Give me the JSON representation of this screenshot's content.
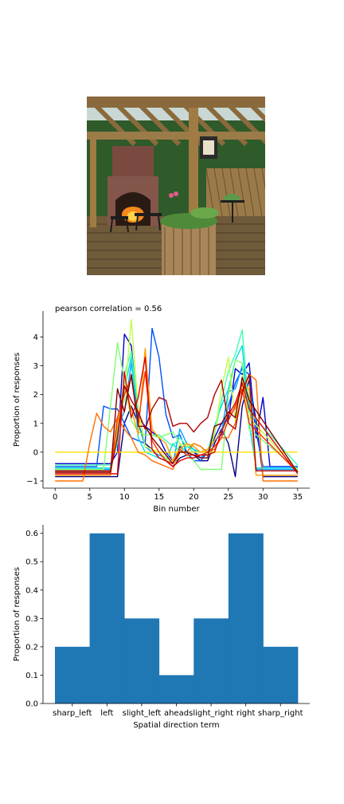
{
  "photo": {
    "colors": {
      "sky": "#c9d8d4",
      "foliage": "#2f5a2a",
      "wood": "#8a6a3c",
      "brick": "#7a4a40",
      "fire": "#f58a1c",
      "deck": "#6f5a3a"
    }
  },
  "chart_data": [
    {
      "type": "line",
      "title": "pearson correlation = 0.56",
      "xlabel": "Bin number",
      "ylabel": "Proportion of responses",
      "xlim": [
        -1.75,
        36.75
      ],
      "ylim": [
        -1.25,
        4.9
      ],
      "xticks": [
        0,
        5,
        10,
        15,
        20,
        25,
        30,
        35
      ],
      "yticks": [
        -1,
        0,
        1,
        2,
        3,
        4
      ],
      "grid": false,
      "colormap": "jet",
      "series": [
        {
          "color": "#000080",
          "x": [
            0,
            6,
            7,
            8,
            9,
            10,
            11,
            12,
            13,
            14,
            15,
            16,
            17,
            18,
            19,
            20,
            21,
            22,
            23,
            24,
            25,
            26,
            27,
            28,
            29,
            30,
            35
          ],
          "y": [
            -0.85,
            -0.85,
            -0.85,
            -0.85,
            -0.85,
            1.0,
            1.6,
            1.0,
            0.3,
            0.1,
            -0.2,
            -0.3,
            -0.5,
            -0.2,
            -0.1,
            -0.1,
            -0.3,
            -0.3,
            0.3,
            0.8,
            0.3,
            -0.85,
            1.6,
            2.5,
            1.1,
            -0.85,
            -0.85
          ]
        },
        {
          "color": "#0000cd",
          "x": [
            0,
            7,
            8,
            9,
            10,
            11,
            12,
            13,
            14,
            15,
            16,
            17,
            18,
            19,
            20,
            21,
            22,
            23,
            24,
            25,
            26,
            27,
            28,
            29,
            30,
            31,
            35
          ],
          "y": [
            -0.4,
            -0.4,
            -0.4,
            0.0,
            4.1,
            3.7,
            1.2,
            0.9,
            0.7,
            0.5,
            0.0,
            -0.3,
            0.2,
            0.0,
            0.0,
            -0.2,
            0.0,
            0.5,
            1.0,
            1.1,
            2.9,
            2.7,
            3.1,
            0.5,
            1.9,
            -0.5,
            -0.5
          ]
        },
        {
          "color": "#0050ff",
          "x": [
            0,
            6,
            7,
            8,
            9,
            10,
            11,
            12,
            13,
            14,
            15,
            16,
            17,
            18,
            19,
            20,
            21,
            22,
            23,
            24,
            25,
            26,
            27,
            28,
            29,
            30,
            35
          ],
          "y": [
            -0.5,
            -0.5,
            1.6,
            1.5,
            1.5,
            1.0,
            0.5,
            0.4,
            0.3,
            4.3,
            3.3,
            1.3,
            0.5,
            0.6,
            0.0,
            -0.3,
            -0.3,
            0.0,
            0.4,
            0.6,
            1.6,
            2.4,
            2.9,
            2.7,
            0.7,
            -0.5,
            -0.5
          ]
        },
        {
          "color": "#00a0ff",
          "x": [
            0,
            8,
            9,
            10,
            11,
            12,
            13,
            14,
            15,
            16,
            17,
            18,
            19,
            20,
            21,
            22,
            23,
            24,
            25,
            26,
            27,
            28,
            29,
            35
          ],
          "y": [
            -0.6,
            -0.6,
            0.9,
            1.4,
            3.1,
            1.0,
            0.2,
            0.0,
            -0.1,
            -0.2,
            -0.4,
            0.8,
            0.3,
            0.1,
            -0.2,
            0.0,
            0.4,
            0.7,
            2.1,
            2.2,
            3.0,
            1.8,
            -0.6,
            -0.6
          ]
        },
        {
          "color": "#00e0e0",
          "x": [
            0,
            8,
            9,
            10,
            11,
            12,
            13,
            14,
            15,
            16,
            17,
            18,
            19,
            20,
            21,
            22,
            23,
            24,
            25,
            26,
            27,
            28,
            29,
            35
          ],
          "y": [
            -0.55,
            -0.55,
            0.7,
            2.2,
            3.3,
            0.5,
            0.0,
            -0.1,
            -0.2,
            -0.3,
            0.3,
            0.0,
            0.2,
            0.1,
            0.0,
            0.0,
            0.9,
            1.6,
            2.2,
            3.2,
            3.7,
            1.0,
            -0.55,
            -0.55
          ]
        },
        {
          "color": "#40ffb0",
          "x": [
            0,
            8,
            9,
            10,
            11,
            12,
            13,
            14,
            15,
            16,
            17,
            18,
            19,
            20,
            21,
            22,
            23,
            24,
            25,
            26,
            27,
            28,
            35
          ],
          "y": [
            -0.45,
            -0.45,
            0.3,
            2.7,
            3.5,
            1.4,
            0.8,
            0.6,
            0.6,
            0.4,
            0.2,
            0.5,
            0.2,
            0.0,
            0.0,
            0.1,
            0.6,
            1.8,
            2.8,
            3.4,
            4.25,
            1.4,
            -0.45
          ]
        },
        {
          "color": "#80ff70",
          "x": [
            0,
            7,
            8,
            9,
            10,
            11,
            12,
            13,
            14,
            15,
            16,
            17,
            18,
            19,
            20,
            21,
            22,
            23,
            24,
            25,
            26,
            27,
            28,
            35
          ],
          "y": [
            -0.6,
            -0.6,
            1.6,
            3.8,
            2.5,
            1.1,
            0.7,
            0.6,
            0.6,
            0.5,
            0.6,
            0.7,
            0.3,
            -0.1,
            -0.3,
            -0.6,
            -0.6,
            -0.6,
            -0.6,
            2.0,
            3.2,
            3.1,
            0.8,
            -0.6
          ]
        },
        {
          "color": "#c0ff40",
          "x": [
            0,
            8,
            9,
            10,
            11,
            12,
            13,
            14,
            15,
            16,
            17,
            18,
            19,
            20,
            21,
            22,
            23,
            24,
            25,
            26,
            27,
            28,
            35
          ],
          "y": [
            -0.65,
            -0.65,
            1.2,
            1.8,
            4.6,
            1.5,
            0.2,
            0.1,
            0.0,
            -0.2,
            -0.4,
            0.3,
            0.2,
            0.3,
            0.2,
            -0.1,
            0.6,
            2.2,
            3.3,
            1.1,
            2.5,
            1.2,
            -0.65
          ]
        },
        {
          "color": "#ffe000",
          "x": [
            0,
            35
          ],
          "y": [
            0.0,
            0.0
          ]
        },
        {
          "color": "#ffa000",
          "x": [
            0,
            7,
            8,
            9,
            10,
            11,
            12,
            13,
            14,
            15,
            16,
            17,
            18,
            19,
            20,
            21,
            22,
            23,
            24,
            25,
            26,
            27,
            28,
            29,
            35
          ],
          "y": [
            -0.8,
            -0.8,
            -0.8,
            0.9,
            2.3,
            1.5,
            0.6,
            3.6,
            0.8,
            0.5,
            0.3,
            -0.3,
            0.1,
            0.3,
            0.2,
            0.0,
            0.1,
            0.4,
            0.7,
            1.3,
            1.5,
            2.3,
            2.2,
            -0.8,
            -0.8
          ]
        },
        {
          "color": "#ff7000",
          "x": [
            0,
            3,
            4,
            5,
            6,
            7,
            8,
            9,
            10,
            11,
            12,
            13,
            14,
            15,
            16,
            17,
            18,
            19,
            20,
            21,
            22,
            23,
            24,
            25,
            26,
            27,
            28,
            29,
            30,
            31,
            35
          ],
          "y": [
            -1.0,
            -1.0,
            -1.0,
            0.3,
            1.35,
            0.9,
            0.7,
            1.2,
            0.8,
            0.5,
            0.0,
            -0.1,
            -0.3,
            -0.4,
            -0.5,
            -0.6,
            0.0,
            0.0,
            0.3,
            0.2,
            0.0,
            0.1,
            0.5,
            0.5,
            1.0,
            2.0,
            2.7,
            2.5,
            -1.0,
            -1.0,
            -1.0
          ]
        },
        {
          "color": "#ff3000",
          "x": [
            0,
            8,
            9,
            10,
            11,
            12,
            13,
            14,
            15,
            16,
            17,
            18,
            19,
            20,
            21,
            22,
            23,
            24,
            25,
            26,
            27,
            28,
            35
          ],
          "y": [
            -0.7,
            -0.7,
            1.2,
            2.0,
            2.6,
            1.0,
            2.8,
            0.4,
            0.0,
            -0.3,
            -0.4,
            0.1,
            -0.1,
            -0.1,
            -0.1,
            0.0,
            0.2,
            0.5,
            1.1,
            1.6,
            2.2,
            1.0,
            -0.7
          ]
        },
        {
          "color": "#e00000",
          "x": [
            0,
            9,
            10,
            11,
            12,
            13,
            14,
            15,
            16,
            17,
            18,
            19,
            20,
            21,
            22,
            23,
            24,
            25,
            26,
            27,
            28,
            35
          ],
          "y": [
            -0.75,
            -0.75,
            2.8,
            1.2,
            1.9,
            3.3,
            0.1,
            -0.2,
            -0.3,
            -0.5,
            -0.3,
            -0.2,
            -0.2,
            -0.1,
            -0.1,
            0.0,
            0.7,
            1.3,
            1.7,
            2.4,
            1.5,
            -0.75
          ]
        },
        {
          "color": "#b00000",
          "x": [
            0,
            8,
            9,
            10,
            11,
            12,
            13,
            14,
            15,
            16,
            17,
            18,
            19,
            20,
            21,
            22,
            23,
            24,
            25,
            26,
            27,
            28,
            29,
            35
          ],
          "y": [
            -0.65,
            -0.65,
            0.5,
            2.3,
            1.8,
            1.4,
            0.8,
            1.5,
            1.9,
            1.8,
            0.9,
            1.0,
            1.0,
            0.7,
            1.0,
            1.2,
            2.0,
            2.5,
            1.0,
            0.8,
            2.1,
            2.7,
            -0.65,
            -0.65
          ]
        },
        {
          "color": "#800000",
          "x": [
            0,
            8,
            9,
            10,
            11,
            12,
            13,
            14,
            15,
            16,
            17,
            18,
            19,
            20,
            21,
            22,
            23,
            24,
            25,
            26,
            27,
            28,
            35
          ],
          "y": [
            -0.7,
            -0.7,
            2.2,
            1.4,
            2.7,
            0.9,
            0.9,
            0.5,
            0.2,
            -0.1,
            -0.4,
            0.0,
            0.0,
            -0.1,
            -0.2,
            -0.2,
            0.9,
            1.0,
            1.4,
            1.2,
            2.6,
            1.8,
            -0.7
          ]
        }
      ]
    },
    {
      "type": "bar",
      "xlabel": "Spatial direction term",
      "ylabel": "Proportion of responses",
      "categories": [
        "sharp_left",
        "left",
        "slight_left",
        "ahead",
        "slight_right",
        "right",
        "sharp_right"
      ],
      "values": [
        0.2,
        0.6,
        0.3,
        0.1,
        0.3,
        0.6,
        0.2
      ],
      "ylim": [
        0,
        0.63
      ],
      "yticks": [
        0.0,
        0.1,
        0.2,
        0.3,
        0.4,
        0.5,
        0.6
      ],
      "color": "#1f77b4",
      "grid": false
    }
  ]
}
